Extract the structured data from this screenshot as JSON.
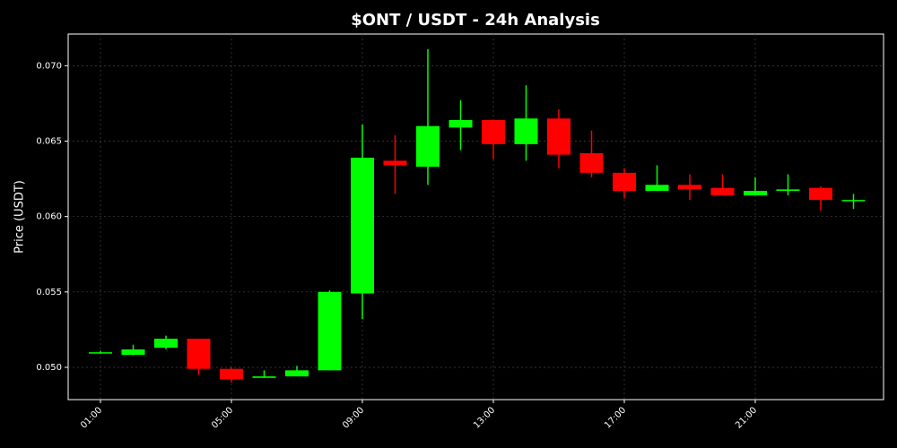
{
  "chart_data": {
    "type": "candlestick",
    "title": "$ONT / USDT - 24h Analysis",
    "y_label": "Price (USDT)",
    "x": [
      1,
      2,
      3,
      4,
      5,
      6,
      7,
      8,
      9,
      10,
      11,
      12,
      13,
      14,
      15,
      16,
      17,
      18,
      19,
      20,
      21,
      22,
      23,
      24
    ],
    "open": [
      0.051,
      0.05083,
      0.0513,
      0.0519,
      0.0499,
      0.0493,
      0.0494,
      0.0498,
      0.0549,
      0.0637,
      0.0633,
      0.0659,
      0.0664,
      0.0648,
      0.0665,
      0.0642,
      0.0629,
      0.0617,
      0.0621,
      0.0619,
      0.0614,
      0.0617,
      0.0619,
      0.0611
    ],
    "high": [
      0.0511,
      0.0515,
      0.0521,
      0.0519,
      0.05,
      0.0498,
      0.0501,
      0.0551,
      0.0661,
      0.0654,
      0.0711,
      0.0677,
      0.0664,
      0.0687,
      0.0671,
      0.0657,
      0.0632,
      0.0634,
      0.0628,
      0.0628,
      0.0626,
      0.0628,
      0.062,
      0.0615
    ],
    "low": [
      0.0509,
      0.0508,
      0.0512,
      0.0495,
      0.049,
      0.0493,
      0.0494,
      0.0498,
      0.0532,
      0.0615,
      0.0621,
      0.0644,
      0.0638,
      0.0637,
      0.0632,
      0.0626,
      0.0612,
      0.0617,
      0.0611,
      0.0614,
      0.0614,
      0.0614,
      0.0604,
      0.0605
    ],
    "close": [
      0.051,
      0.05119,
      0.0519,
      0.0499,
      0.0492,
      0.0494,
      0.0498,
      0.055,
      0.0639,
      0.0634,
      0.066,
      0.0664,
      0.0648,
      0.0665,
      0.0641,
      0.0629,
      0.0617,
      0.0621,
      0.0618,
      0.0614,
      0.0617,
      0.0618,
      0.0611,
      0.0611
    ],
    "up_color": "#00ff00",
    "down_color": "#ff0000",
    "xlim": [
      0.014,
      24.918
    ],
    "xticks": [
      {
        "value": 1,
        "label": "01:00"
      },
      {
        "value": 5,
        "label": "05:00"
      },
      {
        "value": 9,
        "label": "09:00"
      },
      {
        "value": 13,
        "label": "13:00"
      },
      {
        "value": 17,
        "label": "17:00"
      },
      {
        "value": 21,
        "label": "21:00"
      }
    ],
    "ylim": [
      0.04786,
      0.0721
    ],
    "yticks": [
      {
        "value": 0.05,
        "label": "0.050"
      },
      {
        "value": 0.055,
        "label": "0.055"
      },
      {
        "value": 0.06,
        "label": "0.060"
      },
      {
        "value": 0.065,
        "label": "0.065"
      },
      {
        "value": 0.07,
        "label": "0.070"
      }
    ],
    "grid": true
  }
}
